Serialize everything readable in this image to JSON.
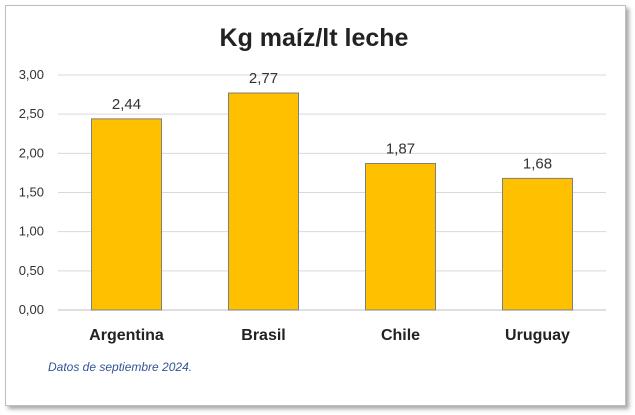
{
  "chart_data": {
    "type": "bar",
    "title": "Kg maíz/lt leche",
    "categories": [
      "Argentina",
      "Brasil",
      "Chile",
      "Uruguay"
    ],
    "values": [
      2.44,
      2.77,
      1.87,
      1.68
    ],
    "value_labels": [
      "2,44",
      "2,77",
      "1,87",
      "1,68"
    ],
    "ylim": [
      0,
      3
    ],
    "yticks": [
      0,
      0.5,
      1,
      1.5,
      2,
      2.5,
      3
    ],
    "ytick_labels": [
      "0,00",
      "0,50",
      "1,00",
      "1,50",
      "2,00",
      "2,50",
      "3,00"
    ],
    "grid": true,
    "bar_color": "#FFC000",
    "bar_border_color": "#7f7f7f",
    "note": "Datos de septiembre 2024."
  }
}
